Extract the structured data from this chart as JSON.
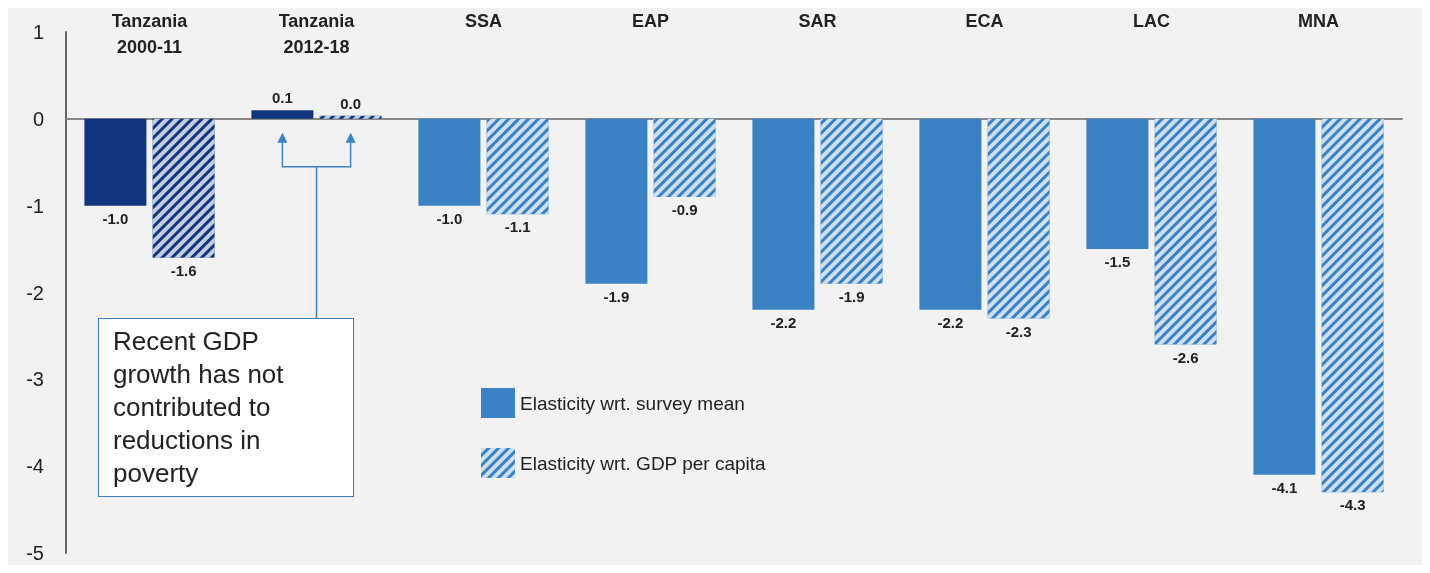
{
  "chart_data": {
    "type": "bar",
    "categories": [
      "Tanzania\n2000-11",
      "Tanzania\n2012-18",
      "SSA",
      "EAP",
      "SAR",
      "ECA",
      "LAC",
      "MNA"
    ],
    "series": [
      {
        "name": "Elasticity wrt. survey mean",
        "color": "#3b82c4",
        "colors": [
          "#12357f",
          "#12357f",
          "#3b82c4",
          "#3b82c4",
          "#3b82c4",
          "#3b82c4",
          "#3b82c4",
          "#3b82c4"
        ],
        "values": [
          -1.0,
          0.1,
          -1.0,
          -1.9,
          -2.2,
          -2.2,
          -1.5,
          -4.1
        ],
        "value_labels": [
          "-1.0",
          "0.1",
          "-1.0",
          "-1.9",
          "-2.2",
          "-2.2",
          "-1.5",
          "-4.1"
        ]
      },
      {
        "name": "Elasticity wrt. GDP per capita",
        "color": "#3b82c4",
        "colors": [
          "#12357f",
          "#12357f",
          "#3b82c4",
          "#3b82c4",
          "#3b82c4",
          "#3b82c4",
          "#3b82c4",
          "#3b82c4"
        ],
        "values": [
          -1.6,
          0.0,
          -1.1,
          -0.9,
          -1.9,
          -2.3,
          -2.6,
          -4.3
        ],
        "value_labels": [
          "-1.6",
          "0.0",
          "-1.1",
          "-0.9",
          "-1.9",
          "-2.3",
          "-2.6",
          "-4.3"
        ]
      }
    ],
    "ylim": [
      -5,
      1
    ],
    "yticks": [
      -5,
      -4,
      -3,
      -2,
      -1,
      0,
      1
    ],
    "annotations": [
      "Recent GDP growth has not contributed to reductions in poverty"
    ],
    "legend": "bottom"
  }
}
